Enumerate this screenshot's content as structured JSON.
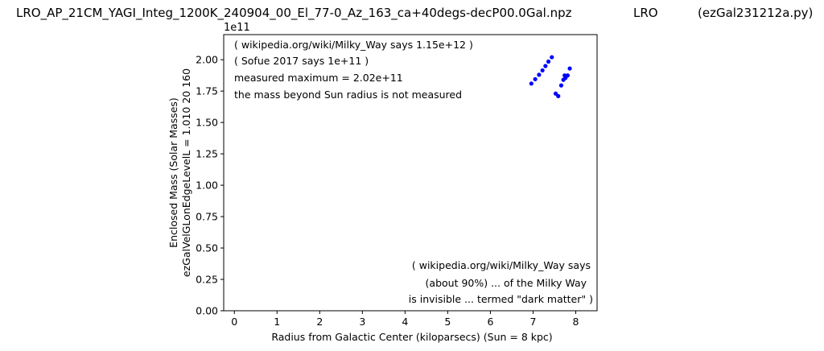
{
  "header": {
    "filename": "LRO_AP_21CM_YAGI_Integ_1200K_240904_00_El_77-0_Az_163_ca+40degs-decP00.0Gal.npz",
    "station": "LRO",
    "script": "(ezGal231212a.py)"
  },
  "chart_data": {
    "type": "scatter",
    "title": "",
    "xlabel": "Radius from Galactic Center (kiloparsecs)  (Sun = 8 kpc)",
    "ylabel_line1": "Enclosed Mass (Solar Masses)",
    "ylabel_line2": "ezGalVelGLonEdgeLevelL = 1.010  20  160",
    "y_offset_label": "1e11",
    "xlim": [
      -0.25,
      8.5
    ],
    "ylim": [
      0.0,
      2.2
    ],
    "x_ticks": [
      0,
      1,
      2,
      3,
      4,
      5,
      6,
      7,
      8
    ],
    "x_tick_labels": [
      "0",
      "1",
      "2",
      "3",
      "4",
      "5",
      "6",
      "7",
      "8"
    ],
    "y_ticks": [
      0,
      0.25,
      0.5,
      0.75,
      1.0,
      1.25,
      1.5,
      1.75,
      2.0
    ],
    "y_tick_labels": [
      "0.00",
      "0.25",
      "0.50",
      "0.75",
      "1.00",
      "1.25",
      "1.50",
      "1.75",
      "2.00"
    ],
    "grid": false,
    "marker_color": "#0000ff",
    "series": [
      {
        "x": [
          6.96,
          7.05,
          7.14,
          7.22,
          7.29,
          7.36,
          7.44,
          7.53,
          7.59,
          7.66,
          7.71,
          7.74,
          7.76,
          7.81,
          7.86
        ],
        "y": [
          1.81,
          1.845,
          1.88,
          1.915,
          1.95,
          1.985,
          2.02,
          1.73,
          1.71,
          1.795,
          1.84,
          1.875,
          1.855,
          1.875,
          1.93
        ]
      }
    ],
    "annotations_top": [
      "( wikipedia.org/wiki/Milky_Way says 1.15e+12 )",
      "( Sofue 2017 says 1e+11 )",
      "measured maximum = 2.02e+11",
      "the mass beyond Sun radius is not measured"
    ],
    "annotations_bottom": [
      "( wikipedia.org/wiki/Milky_Way says",
      "(about 90%) ... of the Milky Way",
      "is invisible ... termed \"dark matter\" )"
    ]
  }
}
